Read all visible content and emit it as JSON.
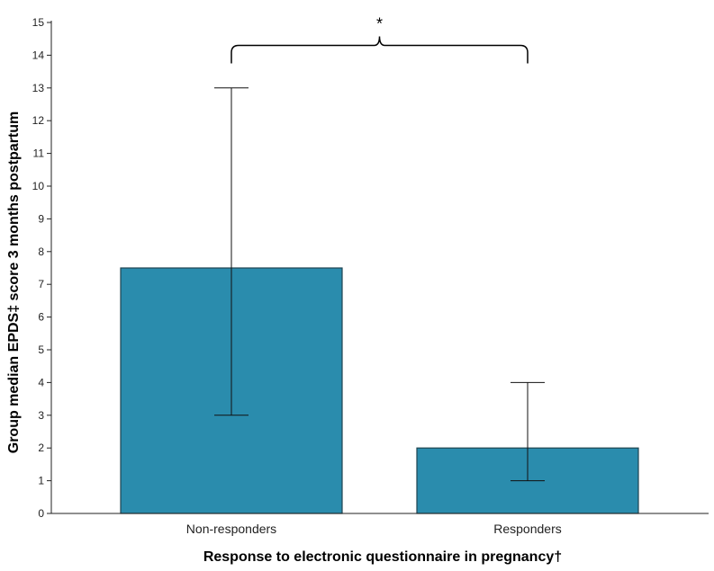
{
  "chart_data": {
    "type": "bar",
    "categories": [
      "Non-responders",
      "Responders"
    ],
    "values": [
      7.5,
      2
    ],
    "error_bars": [
      {
        "low": 3,
        "high": 13
      },
      {
        "low": 1,
        "high": 4
      }
    ],
    "ylim": [
      0,
      15
    ],
    "yticks": [
      0,
      1,
      2,
      3,
      4,
      5,
      6,
      7,
      8,
      9,
      10,
      11,
      12,
      13,
      14,
      15
    ],
    "xlabel": "Response to electronic questionnaire in pregnancy†",
    "ylabel": "Group median EPDS‡ score 3 months postpartum",
    "significance": {
      "label": "*",
      "from": 0,
      "to": 1,
      "y": 14.3
    },
    "bar_color": "#2a8cad",
    "bar_edge_color": "#1f4450",
    "grid": false
  }
}
